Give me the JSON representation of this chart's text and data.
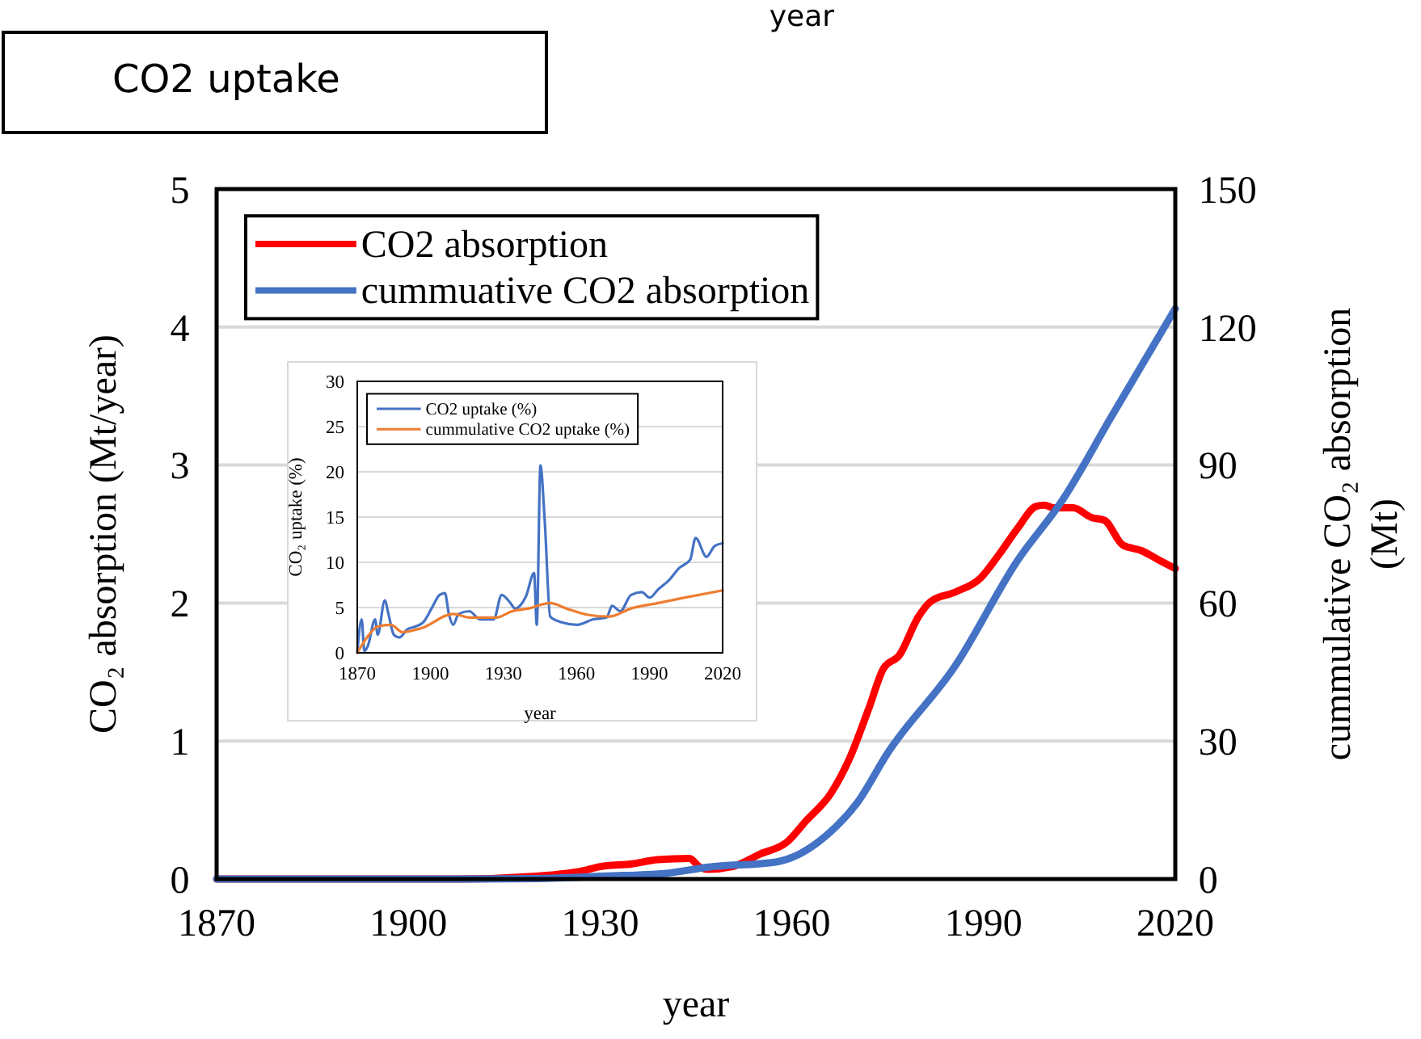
{
  "chart_data": [
    {
      "type": "line",
      "title": "CO2 uptake",
      "annotations": [
        "year"
      ],
      "xlabel": "year",
      "ylabel": "CO₂ absorption (Mt/year)",
      "y2label": "cummulative CO₂ absorption (Mt)",
      "xlim": [
        1870,
        2020
      ],
      "xticks": [
        1870,
        1900,
        1930,
        1960,
        1990,
        2020
      ],
      "ylim": [
        0,
        5
      ],
      "yticks": [
        0,
        1,
        2,
        3,
        4,
        5
      ],
      "y2lim": [
        0,
        150
      ],
      "y2ticks": [
        0,
        30,
        60,
        90,
        120,
        150
      ],
      "grid": "y",
      "legend": "top left",
      "series": [
        {
          "name": "CO2 absorption",
          "color": "#ff0000",
          "x": [
            1870,
            1908,
            1920,
            1927.4,
            1930,
            1935,
            1939,
            1944,
            1945.5,
            1946.8,
            1950.7,
            1955,
            1959.3,
            1962.2,
            1966.1,
            1969,
            1972,
            1974.4,
            1976.8,
            1979.8,
            1981.7,
            1985.6,
            1989.5,
            1992.4,
            1995.3,
            1998.2,
            1999.5,
            2001,
            2004,
            2006.9,
            2008.9,
            2011.8,
            2014.7,
            2017.5,
            2020
          ],
          "values": [
            0,
            0,
            0.02,
            0.06,
            0.09,
            0.11,
            0.14,
            0.15,
            0.09,
            0.07,
            0.09,
            0.18,
            0.27,
            0.42,
            0.62,
            0.87,
            1.23,
            1.53,
            1.62,
            1.9,
            2.01,
            2.08,
            2.18,
            2.35,
            2.54,
            2.7,
            2.71,
            2.69,
            2.69,
            2.62,
            2.6,
            2.42,
            2.38,
            2.31,
            2.25
          ]
        },
        {
          "name": "cummuative CO2 absorption",
          "color": "#4472c4",
          "axis": "y2",
          "x": [
            1870,
            1910,
            1920,
            1927,
            1930,
            1940,
            1947,
            1957.5,
            1966,
            1970.2,
            1975,
            1985.6,
            1995.3,
            2002.5,
            2010,
            2020
          ],
          "values": [
            0,
            0,
            0.1,
            0.4,
            0.6,
            1.2,
            2.6,
            3.7,
            10.2,
            16.5,
            27.4,
            46.4,
            69.2,
            82.7,
            100.5,
            124
          ]
        }
      ]
    },
    {
      "type": "line",
      "xlabel": "year",
      "ylabel": "CO₂ uptake (%)",
      "xlim": [
        1870,
        2020
      ],
      "xticks": [
        1870,
        1900,
        1930,
        1960,
        1990,
        2020
      ],
      "ylim": [
        0,
        30
      ],
      "yticks": [
        0,
        5,
        10,
        15,
        20,
        25,
        30
      ],
      "grid": "y",
      "legend": "top left",
      "series": [
        {
          "name": "CO2 uptake (%)",
          "color": "#4472c4",
          "x": [
            1870,
            1871.8,
            1872.9,
            1874.4,
            1877.3,
            1878.4,
            1881.3,
            1882.8,
            1885,
            1887.3,
            1890.6,
            1893.9,
            1897.2,
            1900.5,
            1903.8,
            1906,
            1907.6,
            1909.4,
            1911.6,
            1916,
            1920.4,
            1926,
            1929.3,
            1932.6,
            1934.8,
            1939.2,
            1942.6,
            1943.7,
            1945.2,
            1947,
            1949.2,
            1953.6,
            1960.3,
            1966.9,
            1972.4,
            1974.6,
            1978,
            1982.4,
            1986.8,
            1990.1,
            1993.5,
            1997.9,
            2002.3,
            2006.7,
            2008.9,
            2013.4,
            2016.7,
            2020
          ],
          "values": [
            0,
            3.7,
            0.2,
            0.8,
            3.7,
            2,
            5.8,
            4.3,
            2,
            1.7,
            2.6,
            2.9,
            3.4,
            4.9,
            6.4,
            6.6,
            4.3,
            3.1,
            4.3,
            4.6,
            3.7,
            3.7,
            6.4,
            5.6,
            4.9,
            6.2,
            8.8,
            3.1,
            20.7,
            14.4,
            4,
            3.4,
            3.1,
            3.7,
            3.9,
            5.2,
            4.6,
            6.4,
            6.7,
            6.1,
            7,
            8,
            9.4,
            10.3,
            12.7,
            10.6,
            11.8,
            12.1
          ]
        },
        {
          "name": "cummulative CO2 uptake (%)",
          "color": "#ed7d31",
          "x": [
            1870,
            1874,
            1878.4,
            1883.9,
            1888.4,
            1896.1,
            1909.4,
            1916,
            1927,
            1933.7,
            1940.4,
            1949.2,
            1955.8,
            1964.7,
            1973.5,
            1982.4,
            1993.5,
            2004.5,
            2020
          ],
          "values": [
            0,
            1.7,
            2.9,
            3.1,
            2.3,
            2.7,
            4.3,
            3.9,
            3.9,
            4.6,
            4.9,
            5.5,
            4.9,
            4.2,
            4,
            4.9,
            5.5,
            6.1,
            6.9
          ]
        }
      ]
    }
  ]
}
